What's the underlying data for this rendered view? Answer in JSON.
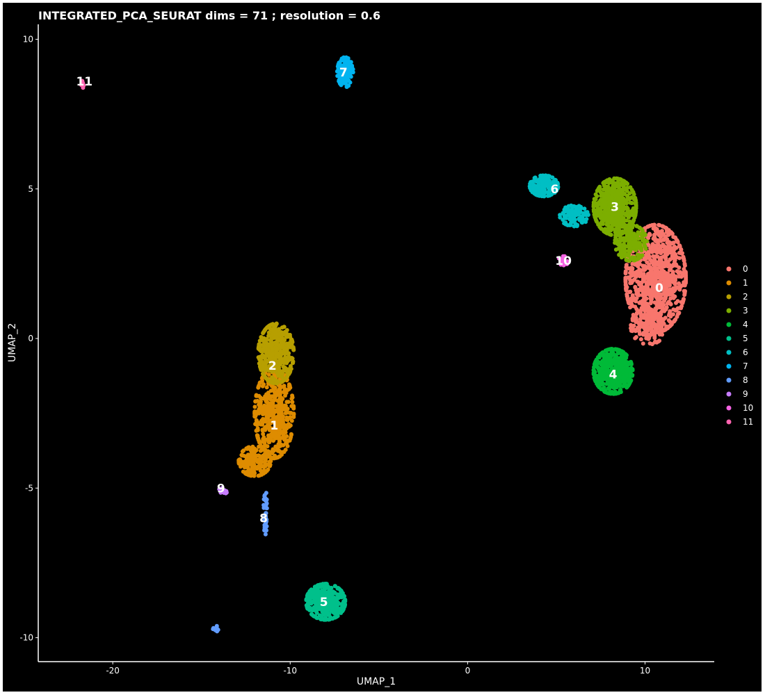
{
  "chart_data": {
    "type": "scatter",
    "title": "INTEGRATED_PCA_SEURAT dims =  71 ; resolution = 0.6",
    "xlabel": "UMAP_1",
    "ylabel": "UMAP_2",
    "xlim": [
      -24.2,
      13.9
    ],
    "ylim": [
      -10.8,
      10.5
    ],
    "x_ticks": [
      -20,
      -10,
      0,
      10
    ],
    "y_ticks": [
      -10,
      -5,
      0,
      5,
      10
    ],
    "x_tick_labels": [
      "-20",
      "-10",
      "0",
      "10"
    ],
    "y_tick_labels": [
      "-10",
      "-5",
      "0",
      "5",
      "10"
    ],
    "grid": false,
    "legend_position": "right",
    "clusters": [
      {
        "id": "0",
        "color": "#F8766D",
        "label_pos": [
          10.8,
          1.7
        ],
        "blobs": [
          {
            "cx": 10.6,
            "cy": 2.0,
            "rx": 1.7,
            "ry": 1.8,
            "n": 900
          },
          {
            "cx": 10.2,
            "cy": 0.4,
            "rx": 1.0,
            "ry": 0.6,
            "n": 150
          }
        ]
      },
      {
        "id": "1",
        "color": "#DE8C00",
        "label_pos": [
          -10.9,
          -2.9
        ],
        "blobs": [
          {
            "cx": -10.9,
            "cy": -2.5,
            "rx": 1.1,
            "ry": 1.5,
            "n": 500
          },
          {
            "cx": -12.0,
            "cy": -4.1,
            "rx": 0.9,
            "ry": 0.5,
            "n": 180
          }
        ]
      },
      {
        "id": "2",
        "color": "#B79F00",
        "label_pos": [
          -11.0,
          -0.9
        ],
        "blobs": [
          {
            "cx": -10.8,
            "cy": -0.5,
            "rx": 1.0,
            "ry": 1.0,
            "n": 450
          }
        ]
      },
      {
        "id": "3",
        "color": "#7CAE00",
        "label_pos": [
          8.3,
          4.4
        ],
        "blobs": [
          {
            "cx": 8.3,
            "cy": 4.4,
            "rx": 1.2,
            "ry": 0.95,
            "n": 550
          },
          {
            "cx": 9.2,
            "cy": 3.2,
            "rx": 0.9,
            "ry": 0.6,
            "n": 200
          }
        ]
      },
      {
        "id": "4",
        "color": "#00BA38",
        "label_pos": [
          8.2,
          -1.2
        ],
        "blobs": [
          {
            "cx": 8.2,
            "cy": -1.1,
            "rx": 1.1,
            "ry": 0.75,
            "n": 450
          }
        ]
      },
      {
        "id": "5",
        "color": "#00C08B",
        "label_pos": [
          -8.1,
          -8.8
        ],
        "blobs": [
          {
            "cx": -8.0,
            "cy": -8.8,
            "rx": 1.1,
            "ry": 0.6,
            "n": 400
          }
        ]
      },
      {
        "id": "6",
        "color": "#00BFC4",
        "label_pos": [
          4.9,
          5.0
        ],
        "blobs": [
          {
            "cx": 4.3,
            "cy": 5.1,
            "rx": 0.8,
            "ry": 0.35,
            "n": 150
          },
          {
            "cx": 6.0,
            "cy": 4.1,
            "rx": 0.8,
            "ry": 0.35,
            "n": 100
          }
        ]
      },
      {
        "id": "7",
        "color": "#00B4F0",
        "label_pos": [
          -7.0,
          8.9
        ],
        "blobs": [
          {
            "cx": -6.9,
            "cy": 8.9,
            "rx": 0.45,
            "ry": 0.5,
            "n": 150
          }
        ]
      },
      {
        "id": "8",
        "color": "#619CFF",
        "label_pos": [
          -11.5,
          -6.0
        ],
        "blobs": [
          {
            "cx": -11.4,
            "cy": -5.8,
            "rx": 0.1,
            "ry": 0.75,
            "n": 40
          },
          {
            "cx": -14.2,
            "cy": -9.7,
            "rx": 0.15,
            "ry": 0.1,
            "n": 10
          }
        ]
      },
      {
        "id": "9",
        "color": "#C77CFF",
        "label_pos": [
          -13.9,
          -5.0
        ],
        "blobs": [
          {
            "cx": -13.8,
            "cy": -5.1,
            "rx": 0.25,
            "ry": 0.1,
            "n": 15
          }
        ]
      },
      {
        "id": "10",
        "color": "#F564E3",
        "label_pos": [
          5.4,
          2.6
        ],
        "blobs": [
          {
            "cx": 5.4,
            "cy": 2.6,
            "rx": 0.3,
            "ry": 0.15,
            "n": 20
          }
        ]
      },
      {
        "id": "11",
        "color": "#FF64B0",
        "label_pos": [
          -21.6,
          8.6
        ],
        "blobs": [
          {
            "cx": -21.7,
            "cy": 8.5,
            "rx": 0.15,
            "ry": 0.12,
            "n": 8
          }
        ]
      }
    ]
  }
}
